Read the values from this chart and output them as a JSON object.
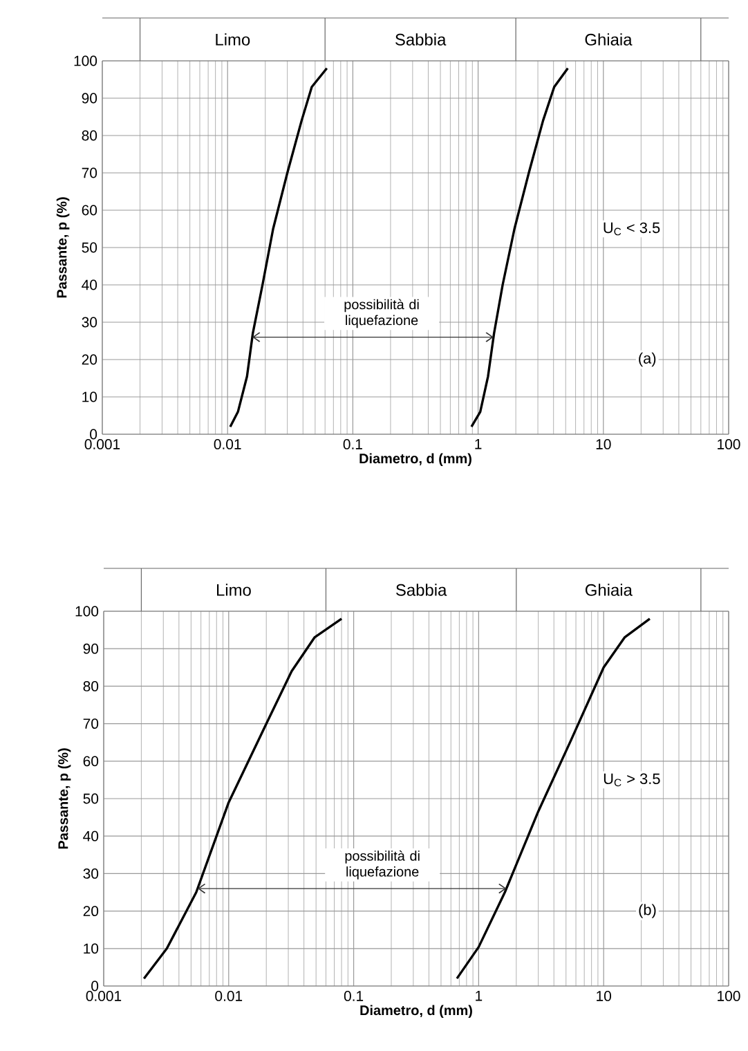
{
  "chart_data": [
    {
      "type": "line",
      "xlabel": "Diametro, d (mm)",
      "ylabel": "Passante, p (%)",
      "log": "x",
      "grid": true,
      "xlim": [
        0.001,
        100
      ],
      "ylim": [
        0,
        100
      ],
      "xticks": [
        0.001,
        0.01,
        0.1,
        1,
        10,
        100
      ],
      "yticks": [
        0,
        10,
        20,
        30,
        40,
        50,
        60,
        70,
        80,
        90,
        100
      ],
      "series": [
        {
          "color": "#000000",
          "x": [
            0.0105,
            0.0121,
            0.0143,
            0.0159,
            0.019,
            0.0231,
            0.03,
            0.039,
            0.047,
            0.062
          ],
          "values": [
            2,
            6,
            15.5,
            27,
            40,
            55,
            70,
            84,
            93,
            98
          ]
        },
        {
          "color": "#000000",
          "x": [
            0.885,
            1.04,
            1.2,
            1.34,
            1.57,
            1.95,
            2.54,
            3.3,
            4.05,
            5.2
          ],
          "values": [
            2,
            6,
            15.5,
            27,
            40,
            55,
            70,
            84,
            93,
            98
          ]
        }
      ],
      "annotations": [
        "Limo",
        "Sabbia",
        "Ghiaia",
        "possibilità di liquefazione",
        "U$_{C}$ < 3.5",
        "(a)"
      ]
    },
    {
      "type": "line",
      "xlabel": "Diametro, d (mm)",
      "ylabel": "Passante, p (%)",
      "log": "x",
      "grid": true,
      "xlim": [
        0.001,
        100
      ],
      "ylim": [
        0,
        100
      ],
      "xticks": [
        0.001,
        0.01,
        0.1,
        1,
        10,
        100
      ],
      "yticks": [
        0,
        10,
        20,
        30,
        40,
        50,
        60,
        70,
        80,
        90,
        100
      ],
      "series": [
        {
          "color": "#000000",
          "x": [
            0.0021,
            0.0032,
            0.0055,
            0.01,
            0.0197,
            0.0319,
            0.0486,
            0.08
          ],
          "values": [
            2,
            10,
            25,
            49,
            69.5,
            84,
            93,
            98
          ]
        },
        {
          "color": "#000000",
          "x": [
            0.67,
            1.0,
            1.62,
            3.0,
            5.5,
            10,
            14.7,
            23.4
          ],
          "values": [
            2,
            10.4,
            25,
            46.6,
            65.7,
            85,
            93,
            98
          ]
        }
      ],
      "annotations": [
        "Limo",
        "Sabbia",
        "Ghiaia",
        "possibilità di liquefazione",
        "U$_{C}$ > 3.5",
        "(b)"
      ]
    }
  ]
}
